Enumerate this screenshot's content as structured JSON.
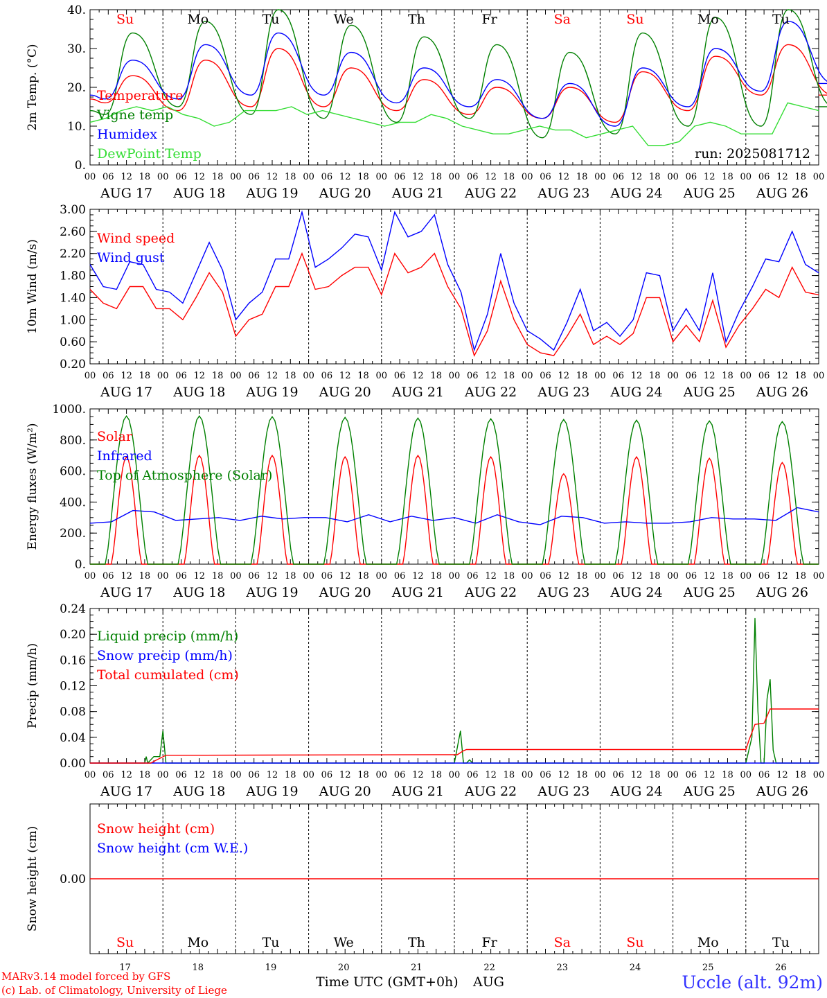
{
  "date_labels": [
    "AUG 17",
    "AUG 18",
    "AUG 19",
    "AUG 20",
    "AUG 21",
    "AUG 22",
    "AUG 23",
    "AUG 24",
    "AUG 25",
    "AUG 26"
  ],
  "day_names": [
    "Su",
    "Mo",
    "Tu",
    "We",
    "Th",
    "Fr",
    "Sa",
    "Su",
    "Mo",
    "Tu"
  ],
  "day_colors": [
    "#ff0000",
    "#000000",
    "#000000",
    "#000000",
    "#000000",
    "#000000",
    "#ff0000",
    "#ff0000",
    "#000000",
    "#000000"
  ],
  "day_numbers": [
    "17",
    "18",
    "19",
    "20",
    "21",
    "22",
    "23",
    "24",
    "25",
    "26"
  ],
  "hour_labels": [
    "00",
    "06",
    "12",
    "18"
  ],
  "footer": {
    "credit_line1": "MARv3.14 model forced by GFS",
    "credit_line2": "(c) Lab. of Climatology, University of Liege",
    "xlabel": "Time UTC (GMT+0h)",
    "month": "AUG",
    "station": "Uccle (alt. 92m)"
  },
  "chart_data": [
    {
      "type": "line",
      "ylabel": "2m Temp. (°C)",
      "ylim": [
        0,
        40
      ],
      "yticks": [
        "0.",
        "10.",
        "20.",
        "30.",
        "40."
      ],
      "run_label": "run: 2025081712",
      "legend": [
        {
          "label": "Temperature",
          "color": "#ff0000"
        },
        {
          "label": "Vigne temp",
          "color": "#008000"
        },
        {
          "label": "Humidex",
          "color": "#0000ff"
        },
        {
          "label": "DewPoint Temp",
          "color": "#33dd33"
        }
      ],
      "series": [
        {
          "color": "#ff0000",
          "kind": "diurnal",
          "mins": [
            16,
            14,
            15,
            15,
            14,
            13,
            12,
            11,
            14,
            18,
            18
          ],
          "maxs": [
            23,
            27,
            30,
            25,
            22,
            20,
            20,
            24,
            28,
            31
          ]
        },
        {
          "color": "#008000",
          "kind": "diurnal",
          "mins": [
            13,
            15,
            13,
            12,
            11,
            12,
            7,
            8,
            10,
            10,
            15
          ],
          "maxs": [
            34,
            37,
            40,
            36,
            33,
            31,
            29,
            34,
            38,
            40
          ]
        },
        {
          "color": "#0000ff",
          "kind": "diurnal",
          "mins": [
            17,
            17,
            18,
            18,
            16,
            15,
            12,
            10,
            15,
            19,
            21
          ],
          "maxs": [
            27,
            31,
            34,
            29,
            25,
            22,
            21,
            25,
            30,
            37
          ]
        },
        {
          "color": "#33dd33",
          "kind": "points",
          "values": [
            11,
            12,
            14,
            15,
            14,
            15,
            13,
            12,
            10,
            11,
            14,
            14,
            14,
            15,
            13,
            14,
            13,
            12,
            11,
            10,
            11,
            11,
            13,
            12,
            10,
            9,
            8,
            8,
            9,
            10,
            9,
            9,
            7,
            8,
            9,
            10,
            5,
            5,
            6,
            10,
            11,
            10,
            8,
            8,
            8,
            16,
            15,
            14
          ]
        }
      ]
    },
    {
      "type": "line",
      "ylabel": "10m Wind (m/s)",
      "ylim": [
        0.2,
        3.0
      ],
      "yticks": [
        "0.20",
        "0.60",
        "1.00",
        "1.40",
        "1.80",
        "2.20",
        "2.60",
        "3.00"
      ],
      "legend": [
        {
          "label": "Wind speed",
          "color": "#ff0000"
        },
        {
          "label": "Wind gust",
          "color": "#0000ff"
        }
      ],
      "series": [
        {
          "color": "#ff0000",
          "kind": "points",
          "values": [
            1.55,
            1.3,
            1.2,
            1.6,
            1.6,
            1.2,
            1.2,
            1.0,
            1.4,
            1.85,
            1.5,
            0.7,
            1.0,
            1.1,
            1.6,
            1.6,
            2.2,
            1.55,
            1.6,
            1.8,
            1.95,
            1.95,
            1.45,
            2.2,
            1.85,
            1.95,
            2.2,
            1.6,
            1.2,
            0.35,
            0.8,
            1.7,
            1.0,
            0.55,
            0.4,
            0.35,
            0.7,
            1.1,
            0.55,
            0.7,
            0.55,
            0.75,
            1.4,
            1.4,
            0.6,
            0.9,
            0.6,
            1.35,
            0.5,
            0.9,
            1.2,
            1.55,
            1.4,
            1.95,
            1.5,
            1.45
          ]
        },
        {
          "color": "#0000ff",
          "kind": "points",
          "values": [
            2.0,
            1.6,
            1.55,
            2.05,
            2.0,
            1.55,
            1.5,
            1.3,
            1.85,
            2.4,
            1.9,
            1.0,
            1.3,
            1.5,
            2.1,
            2.1,
            2.95,
            1.95,
            2.1,
            2.3,
            2.55,
            2.5,
            1.9,
            2.95,
            2.5,
            2.6,
            2.9,
            2.0,
            1.5,
            0.45,
            1.1,
            2.2,
            1.3,
            0.8,
            0.65,
            0.45,
            0.95,
            1.55,
            0.8,
            0.95,
            0.7,
            1.0,
            1.85,
            1.8,
            0.8,
            1.2,
            0.8,
            1.85,
            0.6,
            1.15,
            1.6,
            2.1,
            2.05,
            2.6,
            2.0,
            1.85
          ]
        }
      ]
    },
    {
      "type": "line",
      "ylabel": "Energy fluxes (W/m²)",
      "ylim": [
        0,
        1100
      ],
      "yticks": [
        "0.",
        "200.",
        "400.",
        "600.",
        "800.",
        "1000."
      ],
      "legend": [
        {
          "label": "Solar",
          "color": "#ff0000"
        },
        {
          "label": "Infrared",
          "color": "#0000ff"
        },
        {
          "label": "Top of Atmosphere (Solar)",
          "color": "#008000"
        }
      ],
      "series": [
        {
          "color": "#ff0000",
          "kind": "bell",
          "width": 10,
          "peaks": [
            760,
            770,
            770,
            760,
            770,
            760,
            640,
            760,
            750,
            720
          ]
        },
        {
          "color": "#0000ff",
          "kind": "points",
          "values": [
            290,
            300,
            380,
            370,
            310,
            320,
            330,
            310,
            340,
            320,
            330,
            330,
            300,
            350,
            300,
            340,
            310,
            330,
            290,
            350,
            300,
            280,
            340,
            330,
            290,
            300,
            290,
            290,
            300,
            330,
            320,
            320,
            310,
            400,
            370
          ]
        },
        {
          "color": "#008000",
          "kind": "bell",
          "width": 14,
          "peaks": [
            1050,
            1050,
            1045,
            1040,
            1035,
            1030,
            1025,
            1020,
            1015,
            1010
          ]
        }
      ]
    },
    {
      "type": "line",
      "ylabel": "Precip (mm/h)",
      "ylim": [
        0,
        0.24
      ],
      "yticks": [
        "0.00",
        "0.04",
        "0.08",
        "0.12",
        "0.16",
        "0.20",
        "0.24"
      ],
      "legend": [
        {
          "label": "Liquid precip (mm/h)",
          "color": "#008000"
        },
        {
          "label": "Snow precip (mm/h)",
          "color": "#0000ff"
        },
        {
          "label": "Total cumulated (cm)",
          "color": "#ff0000"
        }
      ],
      "series": [
        {
          "color": "#008000",
          "kind": "xy",
          "x": [
            0,
            18,
            18.5,
            19,
            21,
            23,
            24,
            25,
            26,
            120,
            122,
            123,
            124,
            125,
            126,
            216,
            218,
            219,
            220,
            221,
            222,
            223,
            224,
            225,
            226,
            228,
            240
          ],
          "y": [
            0,
            0,
            0.01,
            0,
            0.01,
            0.01,
            0.05,
            0,
            0,
            0,
            0.05,
            0,
            0,
            0.005,
            0,
            0,
            0.04,
            0.225,
            0.08,
            0,
            0,
            0.1,
            0.13,
            0.02,
            0,
            0,
            0
          ]
        },
        {
          "color": "#0000ff",
          "kind": "xy",
          "x": [
            0,
            240
          ],
          "y": [
            0,
            0
          ]
        },
        {
          "color": "#ff0000",
          "kind": "xy",
          "x": [
            0,
            20,
            22,
            25,
            121,
            123,
            124,
            216,
            217,
            219,
            222,
            224,
            240
          ],
          "y": [
            0,
            0,
            0.005,
            0.012,
            0.013,
            0.019,
            0.021,
            0.021,
            0.035,
            0.06,
            0.062,
            0.084,
            0.084
          ]
        }
      ]
    },
    {
      "type": "line",
      "ylabel": "Snow height (cm)",
      "ylim": [
        -1,
        1
      ],
      "yticks": [
        "0.00"
      ],
      "legend": [
        {
          "label": "Snow height (cm)",
          "color": "#ff0000"
        },
        {
          "label": "Snow height (cm W.E.)",
          "color": "#0000ff"
        }
      ],
      "series": [
        {
          "color": "#ff0000",
          "kind": "xy",
          "x": [
            0,
            240
          ],
          "y": [
            0,
            0
          ]
        }
      ]
    }
  ]
}
